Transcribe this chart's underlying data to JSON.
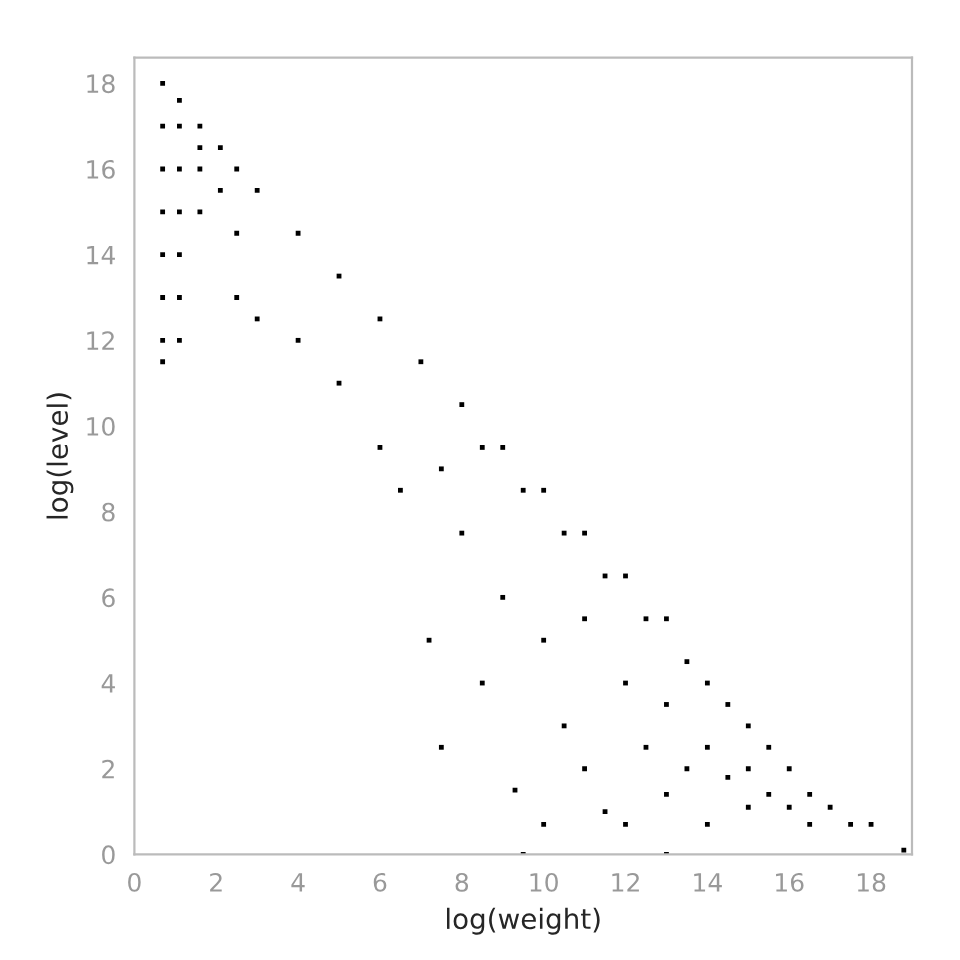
{
  "chart_data": {
    "type": "scatter",
    "xlabel": "log(weight)",
    "ylabel": "log(level)",
    "xlim": [
      0,
      19
    ],
    "ylim": [
      0,
      18.6
    ],
    "xticks": [
      0,
      2,
      4,
      6,
      8,
      10,
      12,
      14,
      16,
      18
    ],
    "yticks": [
      0,
      2,
      4,
      6,
      8,
      10,
      12,
      14,
      16,
      18
    ],
    "grid": false,
    "marker": "square",
    "series": [
      {
        "color": "#000000",
        "x": [
          0.69,
          0.69,
          0.69,
          0.69,
          0.69,
          0.69,
          0.69,
          0.69,
          1.1,
          1.1,
          1.1,
          1.1,
          1.1,
          1.1,
          1.1,
          1.6,
          1.6,
          1.6,
          1.6,
          2.1,
          2.1,
          2.5,
          2.5,
          2.5,
          3,
          3,
          4,
          4,
          5,
          5,
          6,
          6,
          6.5,
          7,
          7.2,
          7.5,
          7.5,
          8,
          8,
          8.5,
          8.5,
          9,
          9,
          9.3,
          9.5,
          10,
          10,
          10,
          10.5,
          10.5,
          11,
          11,
          11,
          11.5,
          11.5,
          12,
          12,
          12,
          12.5,
          12.5,
          13,
          13,
          13,
          13.5,
          13.5,
          14,
          14,
          14,
          14.5,
          14.5,
          15,
          15,
          15,
          15.5,
          15.5,
          16,
          16,
          16.5,
          16.5,
          17,
          17.5,
          18,
          18.8,
          13,
          9.5
        ],
        "values": [
          11.5,
          12,
          13,
          14,
          15,
          16,
          17,
          18,
          12,
          13,
          14,
          15,
          16,
          17,
          17.6,
          15,
          16,
          16.5,
          17,
          15.5,
          16.5,
          13,
          14.5,
          16,
          12.5,
          15.5,
          14.5,
          12,
          13.5,
          11,
          12.5,
          9.5,
          8.5,
          11.5,
          5,
          2.5,
          9,
          10.5,
          7.5,
          9.5,
          4,
          9.5,
          6,
          1.5,
          8.5,
          8.5,
          5,
          0.7,
          7.5,
          3,
          7.5,
          5.5,
          2,
          6.5,
          1,
          6.5,
          4,
          0.7,
          5.5,
          2.5,
          5.5,
          3.5,
          1.4,
          4.5,
          2,
          4,
          2.5,
          0.7,
          3.5,
          1.8,
          3,
          2,
          1.1,
          2.5,
          1.4,
          2,
          1.1,
          1.4,
          0.7,
          1.1,
          0.7,
          0.7,
          0.1,
          0,
          0
        ]
      }
    ]
  }
}
